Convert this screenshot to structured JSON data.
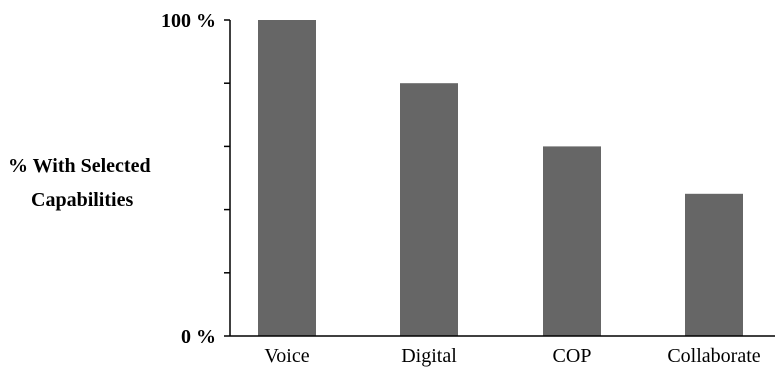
{
  "chart_data": {
    "type": "bar",
    "categories": [
      "Voice",
      "Digital",
      "COP",
      "Collaborate"
    ],
    "values": [
      100,
      80,
      60,
      45
    ],
    "ylim": [
      0,
      100
    ],
    "y_ticks": [
      0,
      20,
      40,
      60,
      80,
      100
    ],
    "y_tick_labels": [
      "0 %",
      "",
      "",
      "",
      "",
      "100 %"
    ],
    "ylabel_lines": [
      "% With Selected",
      "Capabilities"
    ],
    "xlabel": "",
    "title": "",
    "grid": false,
    "legend": "none",
    "bar_color": "#666666",
    "axis_color": "#000000"
  }
}
